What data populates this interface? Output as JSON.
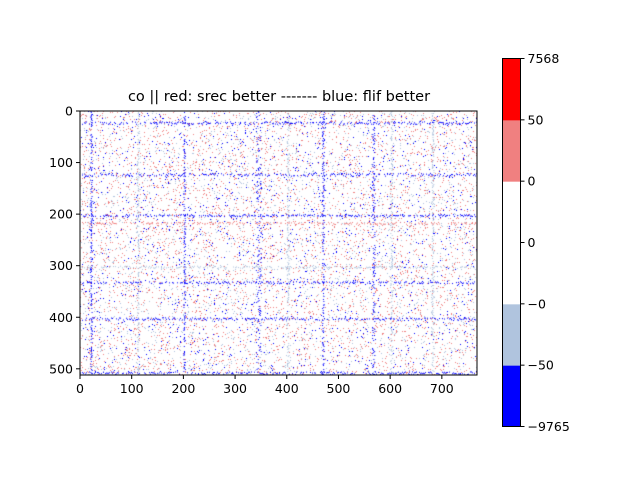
{
  "chart_data": {
    "type": "heatmap",
    "title": "co || red: srec better ------- blue: flif better",
    "xlabel": "",
    "ylabel": "",
    "xlim": [
      0,
      768
    ],
    "ylim": [
      512,
      0
    ],
    "x_ticks": [
      0,
      100,
      200,
      300,
      400,
      500,
      600,
      700
    ],
    "y_ticks": [
      0,
      100,
      200,
      300,
      400,
      500
    ],
    "x_tick_labels": [
      "0",
      "100",
      "200",
      "300",
      "400",
      "500",
      "600",
      "700"
    ],
    "y_tick_labels": [
      "0",
      "100",
      "200",
      "300",
      "400",
      "500"
    ],
    "colorbar": {
      "boundaries": [
        -9765,
        -50,
        0,
        0,
        0,
        50,
        7568
      ],
      "labels": [
        "7568",
        "50",
        "0",
        "0",
        "−0",
        "−50",
        "−9765"
      ],
      "colors": [
        "#0000ff",
        "#b0c4de",
        "#ffffff",
        "#ffffff",
        "#f08080",
        "#ff0000"
      ]
    },
    "color_meaning": {
      "red": "srec better",
      "blue": "flif better"
    },
    "bands_x": [
      {
        "x": 20,
        "width": 3,
        "color": "#0000ff"
      },
      {
        "x": 110,
        "width": 4,
        "color": "#b0c4de"
      },
      {
        "x": 200,
        "width": 3,
        "color": "#0000ff"
      },
      {
        "x": 340,
        "width": 10,
        "color": "#0000ff"
      },
      {
        "x": 400,
        "width": 4,
        "color": "#b0c4de"
      },
      {
        "x": 468,
        "width": 4,
        "color": "#0000ff"
      },
      {
        "x": 565,
        "width": 5,
        "color": "#0000ff"
      },
      {
        "x": 600,
        "width": 4,
        "color": "#b0c4de"
      },
      {
        "x": 680,
        "width": 4,
        "color": "#b0c4de"
      }
    ],
    "bands_y": [
      {
        "y": 20,
        "height": 5,
        "color": "#0000ff"
      },
      {
        "y": 120,
        "height": 6,
        "color": "#0000ff"
      },
      {
        "y": 200,
        "height": 4,
        "color": "#0000ff"
      },
      {
        "y": 215,
        "height": 4,
        "color": "#f08080"
      },
      {
        "y": 300,
        "height": 4,
        "color": "#b0c4de"
      },
      {
        "y": 330,
        "height": 4,
        "color": "#0000ff"
      },
      {
        "y": 400,
        "height": 5,
        "color": "#0000ff"
      },
      {
        "y": 505,
        "height": 5,
        "color": "#0000ff"
      }
    ]
  }
}
